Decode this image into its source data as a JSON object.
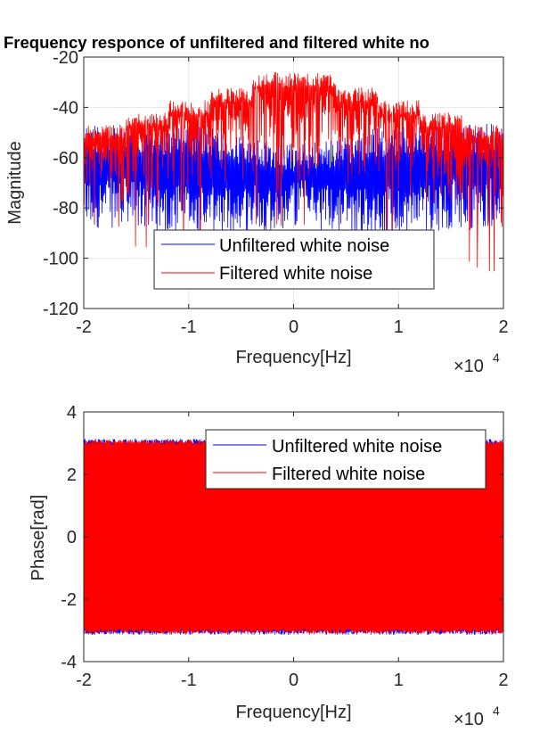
{
  "chart_data": [
    {
      "type": "line",
      "title": "Frequency responce of unfiltered and filtered white no",
      "xlabel": "Frequency[Hz]",
      "ylabel": "Magnitude",
      "x_exponent_label": "×10",
      "x_exponent_power": "4",
      "xlim": [
        -20000,
        20000
      ],
      "ylim": [
        -120,
        -20
      ],
      "x_tick_values": [
        -20000,
        -10000,
        0,
        10000,
        20000
      ],
      "x_tick_labels": [
        "-2",
        "-1",
        "0",
        "1",
        "2"
      ],
      "y_ticks": [
        -20,
        -40,
        -60,
        -80,
        -100,
        -120
      ],
      "grid": true,
      "legend_location": "lower-center",
      "series": [
        {
          "name": "Unfiltered white noise",
          "color": "#0000ff",
          "description_points": {
            "x": [
              -20000,
              -16000,
              -12000,
              -8000,
              -4000,
              0,
              4000,
              8000,
              12000,
              16000,
              20000
            ],
            "y_upper": [
              -46,
              -47,
              -47,
              -48,
              -52,
              -54,
              -52,
              -48,
              -47,
              -47,
              -46
            ],
            "y_lower": [
              -88,
              -88,
              -90,
              -92,
              -90,
              -88,
              -90,
              -92,
              -90,
              -88,
              -88
            ]
          }
        },
        {
          "name": "Filtered white noise",
          "color": "#ff0000",
          "description_points": {
            "x": [
              -20000,
              -16000,
              -16000,
              -12000,
              -12000,
              -8000,
              -8000,
              -4000,
              -4000,
              4000,
              4000,
              8000,
              8000,
              12000,
              12000,
              16000,
              16000,
              20000
            ],
            "y_upper": [
              -47,
              -47,
              -42,
              -42,
              -37,
              -37,
              -32,
              -32,
              -26,
              -26,
              -32,
              -32,
              -37,
              -37,
              -42,
              -42,
              -47,
              -47
            ],
            "y_lower": [
              -95,
              -95,
              -90,
              -90,
              -86,
              -86,
              -82,
              -82,
              -78,
              -78,
              -82,
              -82,
              -86,
              -86,
              -90,
              -90,
              -95,
              -95
            ]
          }
        }
      ]
    },
    {
      "type": "line",
      "title": "",
      "xlabel": "Frequency[Hz]",
      "ylabel": "Phase[rad]",
      "x_exponent_label": "×10",
      "x_exponent_power": "4",
      "xlim": [
        -20000,
        20000
      ],
      "ylim": [
        -4,
        4
      ],
      "x_tick_values": [
        -20000,
        -10000,
        0,
        10000,
        20000
      ],
      "x_tick_labels": [
        "-2",
        "-1",
        "0",
        "1",
        "2"
      ],
      "y_ticks": [
        4,
        2,
        0,
        -2,
        -4
      ],
      "grid": false,
      "legend_location": "top-right",
      "series": [
        {
          "name": "Unfiltered white noise",
          "color": "#0000ff",
          "y_range": [
            -3.14,
            3.14
          ]
        },
        {
          "name": "Filtered white noise",
          "color": "#ff0000",
          "y_range": [
            -3.1,
            3.1
          ]
        }
      ]
    }
  ]
}
